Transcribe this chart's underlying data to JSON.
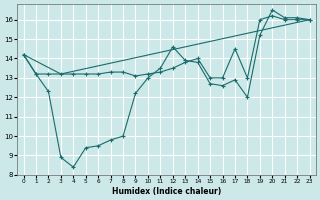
{
  "xlabel": "Humidex (Indice chaleur)",
  "bg_color": "#cce8e8",
  "grid_color": "#ffffff",
  "line_color": "#1a6b6b",
  "xlim": [
    -0.5,
    23.5
  ],
  "ylim": [
    8,
    16.8
  ],
  "xticks": [
    0,
    1,
    2,
    3,
    4,
    5,
    6,
    7,
    8,
    9,
    10,
    11,
    12,
    13,
    14,
    15,
    16,
    17,
    18,
    19,
    20,
    21,
    22,
    23
  ],
  "yticks": [
    8,
    9,
    10,
    11,
    12,
    13,
    14,
    15,
    16
  ],
  "line1_x": [
    0,
    1,
    2,
    3,
    4,
    5,
    6,
    7,
    8,
    9,
    10,
    11,
    12,
    13,
    14,
    15,
    16,
    17,
    18,
    19,
    20,
    21,
    22,
    23
  ],
  "line1_y": [
    14.2,
    13.2,
    13.2,
    13.2,
    13.2,
    13.2,
    13.2,
    13.3,
    13.3,
    13.1,
    13.2,
    13.3,
    13.5,
    13.8,
    14.0,
    13.0,
    13.0,
    14.5,
    13.0,
    16.0,
    16.2,
    16.0,
    16.0,
    16.0
  ],
  "line2_x": [
    0,
    1,
    2,
    3,
    4,
    5,
    6,
    7,
    8,
    9,
    10,
    11,
    12,
    13,
    14,
    15,
    16,
    17,
    18,
    19,
    20,
    21,
    22,
    23
  ],
  "line2_y": [
    14.2,
    13.2,
    12.3,
    8.9,
    8.4,
    9.4,
    9.5,
    9.8,
    10.0,
    12.2,
    13.0,
    13.5,
    14.6,
    13.9,
    13.8,
    12.7,
    12.6,
    12.9,
    12.0,
    15.2,
    16.5,
    16.1,
    16.1,
    16.0
  ],
  "line3_x": [
    0,
    3,
    23
  ],
  "line3_y": [
    14.2,
    13.2,
    16.0
  ]
}
